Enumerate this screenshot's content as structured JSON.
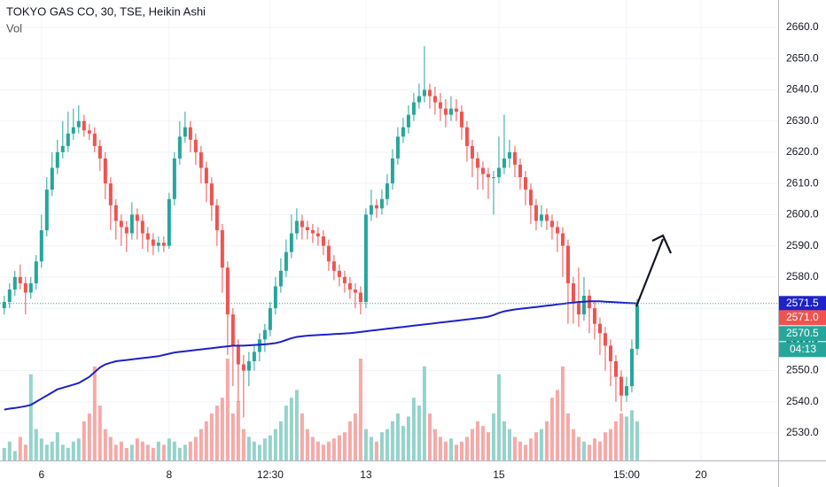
{
  "chart_data": {
    "type": "candlestick",
    "title": "TOKYO GAS CO, 30, TSE, Heikin Ashi",
    "subtitle": "Vol",
    "open": [
      2570,
      2572,
      2576,
      2580,
      2578,
      2575,
      2578,
      2585,
      2595,
      2608,
      2615,
      2620,
      2622,
      2626,
      2628,
      2630,
      2627,
      2626,
      2622,
      2618,
      2610,
      2603,
      2598,
      2596,
      2594,
      2600,
      2598,
      2594,
      2592,
      2590,
      2591,
      2590,
      2605,
      2618,
      2625,
      2628,
      2624,
      2620,
      2615,
      2610,
      2603,
      2595,
      2583,
      2568,
      2558,
      2552,
      2550,
      2553,
      2556,
      2560,
      2563,
      2570,
      2577,
      2582,
      2588,
      2594,
      2598,
      2596,
      2595,
      2594,
      2593,
      2590,
      2585,
      2582,
      2580,
      2578,
      2576,
      2575,
      2572,
      2600,
      2603,
      2602,
      2605,
      2610,
      2618,
      2625,
      2628,
      2632,
      2636,
      2638,
      2640,
      2638,
      2636,
      2634,
      2632,
      2634,
      2633,
      2628,
      2622,
      2618,
      2615,
      2613,
      2612,
      2612,
      2615,
      2618,
      2620,
      2616,
      2612,
      2608,
      2603,
      2598,
      2600,
      2598,
      2596,
      2594,
      2590,
      2578,
      2572,
      2568,
      2574,
      2570,
      2565,
      2562,
      2558,
      2553,
      2548,
      2542,
      2545,
      2557
    ],
    "high": [
      2574,
      2578,
      2582,
      2584,
      2580,
      2580,
      2587,
      2600,
      2612,
      2620,
      2624,
      2630,
      2633,
      2634,
      2635,
      2632,
      2629,
      2628,
      2624,
      2620,
      2612,
      2605,
      2600,
      2598,
      2604,
      2602,
      2600,
      2596,
      2594,
      2593,
      2593,
      2607,
      2620,
      2630,
      2633,
      2630,
      2626,
      2622,
      2617,
      2612,
      2605,
      2597,
      2585,
      2570,
      2560,
      2555,
      2556,
      2558,
      2562,
      2565,
      2572,
      2580,
      2586,
      2592,
      2600,
      2602,
      2600,
      2598,
      2597,
      2596,
      2595,
      2592,
      2587,
      2584,
      2582,
      2580,
      2578,
      2577,
      2602,
      2608,
      2605,
      2608,
      2613,
      2621,
      2628,
      2631,
      2635,
      2639,
      2642,
      2654,
      2642,
      2641,
      2639,
      2637,
      2638,
      2637,
      2635,
      2630,
      2624,
      2620,
      2617,
      2615,
      2614,
      2625,
      2632,
      2624,
      2622,
      2618,
      2614,
      2610,
      2605,
      2603,
      2602,
      2600,
      2598,
      2596,
      2592,
      2580,
      2583,
      2580,
      2576,
      2572,
      2567,
      2564,
      2560,
      2555,
      2550,
      2548,
      2560,
      2573
    ],
    "low": [
      2568,
      2570,
      2574,
      2576,
      2568,
      2573,
      2576,
      2583,
      2593,
      2606,
      2613,
      2618,
      2620,
      2624,
      2626,
      2625,
      2624,
      2620,
      2614,
      2605,
      2595,
      2592,
      2590,
      2588,
      2592,
      2592,
      2589,
      2588,
      2587,
      2588,
      2588,
      2589,
      2603,
      2616,
      2623,
      2620,
      2616,
      2610,
      2604,
      2598,
      2590,
      2575,
      2555,
      2545,
      2540,
      2535,
      2545,
      2550,
      2553,
      2556,
      2561,
      2568,
      2575,
      2580,
      2586,
      2592,
      2592,
      2592,
      2591,
      2590,
      2587,
      2582,
      2579,
      2577,
      2575,
      2573,
      2570,
      2568,
      2570,
      2598,
      2599,
      2600,
      2603,
      2608,
      2616,
      2623,
      2626,
      2630,
      2634,
      2636,
      2634,
      2632,
      2630,
      2628,
      2630,
      2630,
      2624,
      2617,
      2612,
      2608,
      2608,
      2605,
      2600,
      2610,
      2613,
      2615,
      2612,
      2608,
      2603,
      2597,
      2595,
      2596,
      2595,
      2592,
      2588,
      2580,
      2565,
      2565,
      2564,
      2566,
      2562,
      2560,
      2555,
      2550,
      2545,
      2540,
      2537,
      2540,
      2543,
      2555
    ],
    "close": [
      2572,
      2576,
      2580,
      2578,
      2575,
      2578,
      2585,
      2595,
      2608,
      2615,
      2620,
      2622,
      2626,
      2628,
      2630,
      2627,
      2626,
      2622,
      2618,
      2610,
      2603,
      2598,
      2596,
      2594,
      2600,
      2598,
      2594,
      2592,
      2590,
      2591,
      2590,
      2605,
      2618,
      2625,
      2628,
      2624,
      2620,
      2615,
      2610,
      2603,
      2595,
      2583,
      2568,
      2558,
      2552,
      2550,
      2553,
      2556,
      2560,
      2563,
      2570,
      2577,
      2582,
      2588,
      2594,
      2598,
      2596,
      2595,
      2594,
      2593,
      2590,
      2585,
      2582,
      2580,
      2578,
      2576,
      2575,
      2572,
      2600,
      2603,
      2602,
      2605,
      2610,
      2618,
      2625,
      2628,
      2632,
      2636,
      2638,
      2640,
      2638,
      2636,
      2634,
      2632,
      2634,
      2633,
      2628,
      2622,
      2618,
      2615,
      2613,
      2612,
      2612,
      2615,
      2618,
      2620,
      2616,
      2612,
      2608,
      2603,
      2598,
      2600,
      2598,
      2596,
      2594,
      2590,
      2578,
      2572,
      2568,
      2574,
      2570,
      2565,
      2562,
      2558,
      2553,
      2548,
      2542,
      2545,
      2557,
      2571
    ],
    "volume": [
      8,
      12,
      6,
      15,
      10,
      55,
      20,
      14,
      10,
      12,
      18,
      10,
      8,
      12,
      14,
      25,
      30,
      60,
      35,
      20,
      15,
      10,
      12,
      8,
      10,
      14,
      12,
      10,
      8,
      12,
      10,
      14,
      12,
      8,
      10,
      12,
      15,
      20,
      25,
      30,
      35,
      40,
      65,
      30,
      38,
      20,
      15,
      12,
      10,
      14,
      16,
      20,
      25,
      35,
      40,
      45,
      30,
      20,
      15,
      12,
      10,
      12,
      14,
      16,
      18,
      25,
      30,
      65,
      20,
      15,
      12,
      18,
      20,
      25,
      30,
      22,
      28,
      40,
      35,
      60,
      30,
      20,
      15,
      12,
      14,
      10,
      12,
      15,
      20,
      25,
      22,
      18,
      30,
      55,
      25,
      20,
      15,
      12,
      10,
      14,
      18,
      20,
      25,
      40,
      45,
      60,
      30,
      20,
      15,
      12,
      10,
      14,
      12,
      18,
      20,
      25,
      30,
      28,
      32,
      25
    ],
    "up_color": "#26a69a",
    "down_color": "#ef5350",
    "volume_up_color": "#95d3cb",
    "volume_down_color": "#f6a9a7",
    "line": {
      "color": "#1e22c8",
      "values": [
        2537.5,
        2537.8,
        2538,
        2538.3,
        2538.6,
        2539,
        2540,
        2541,
        2542,
        2543,
        2544,
        2544.5,
        2545,
        2545.5,
        2546,
        2547,
        2548,
        2549.5,
        2551,
        2552,
        2552.5,
        2553,
        2553.2,
        2553.4,
        2553.6,
        2553.8,
        2554,
        2554.2,
        2554.4,
        2554.6,
        2555,
        2555.4,
        2555.8,
        2556,
        2556.2,
        2556.4,
        2556.6,
        2556.8,
        2557,
        2557.2,
        2557.4,
        2557.6,
        2557.8,
        2558,
        2558,
        2558,
        2558.1,
        2558.2,
        2558.3,
        2558.4,
        2558.6,
        2558.8,
        2559.2,
        2559.8,
        2560.4,
        2560.8,
        2561,
        2561.2,
        2561.3,
        2561.4,
        2561.5,
        2561.6,
        2561.7,
        2561.8,
        2561.9,
        2562,
        2562.2,
        2562.4,
        2562.6,
        2562.8,
        2563,
        2563.2,
        2563.4,
        2563.6,
        2563.8,
        2564,
        2564.2,
        2564.4,
        2564.6,
        2564.8,
        2565,
        2565.2,
        2565.4,
        2565.6,
        2565.8,
        2566,
        2566.2,
        2566.4,
        2566.6,
        2566.8,
        2567,
        2567.3,
        2567.8,
        2568.5,
        2569,
        2569.3,
        2569.6,
        2569.8,
        2570,
        2570.2,
        2570.4,
        2570.6,
        2570.8,
        2571,
        2571.2,
        2571.4,
        2571.6,
        2571.8,
        2572,
        2572.1,
        2572.2,
        2572.2,
        2572.2,
        2572.1,
        2572,
        2571.9,
        2571.8,
        2571.7,
        2571.6,
        2571.5
      ]
    },
    "xlim": [
      -0.8,
      145.5
    ],
    "xticks": [
      {
        "value": 7,
        "label": "6"
      },
      {
        "value": 31,
        "label": "8"
      },
      {
        "value": 50,
        "label": "12:30"
      },
      {
        "value": 68,
        "label": "13"
      },
      {
        "value": 93,
        "label": "15"
      },
      {
        "value": 117,
        "label": "15:00"
      },
      {
        "value": 131,
        "label": "20"
      }
    ],
    "ylim": [
      2521.2,
      2668.8
    ],
    "yticks": [
      {
        "value": 2530,
        "label": "2530.0"
      },
      {
        "value": 2540,
        "label": "2540.0"
      },
      {
        "value": 2550,
        "label": "2550.0"
      },
      {
        "value": 2560,
        "label": "2560.0"
      },
      {
        "value": 2570,
        "label": "2570.0"
      },
      {
        "value": 2580,
        "label": "2580.0"
      },
      {
        "value": 2590,
        "label": "2590.0"
      },
      {
        "value": 2600,
        "label": "2600.0"
      },
      {
        "value": 2610,
        "label": "2610.0"
      },
      {
        "value": 2620,
        "label": "2620.0"
      },
      {
        "value": 2630,
        "label": "2630.0"
      },
      {
        "value": 2640,
        "label": "2640.0"
      },
      {
        "value": 2650,
        "label": "2650.0"
      },
      {
        "value": 2660,
        "label": "2660.0"
      }
    ],
    "grid": true,
    "price_tags": [
      {
        "value": 2571.5,
        "label": "2571.5",
        "color": "#1e22c8"
      },
      {
        "value": 2571.0,
        "label": "2571.0",
        "color": "#ef5350"
      },
      {
        "value": 2570.5,
        "label": "2570.5",
        "color": "#26a69a"
      }
    ],
    "countdown": "04:13",
    "countdown_color": "#26a69a"
  }
}
